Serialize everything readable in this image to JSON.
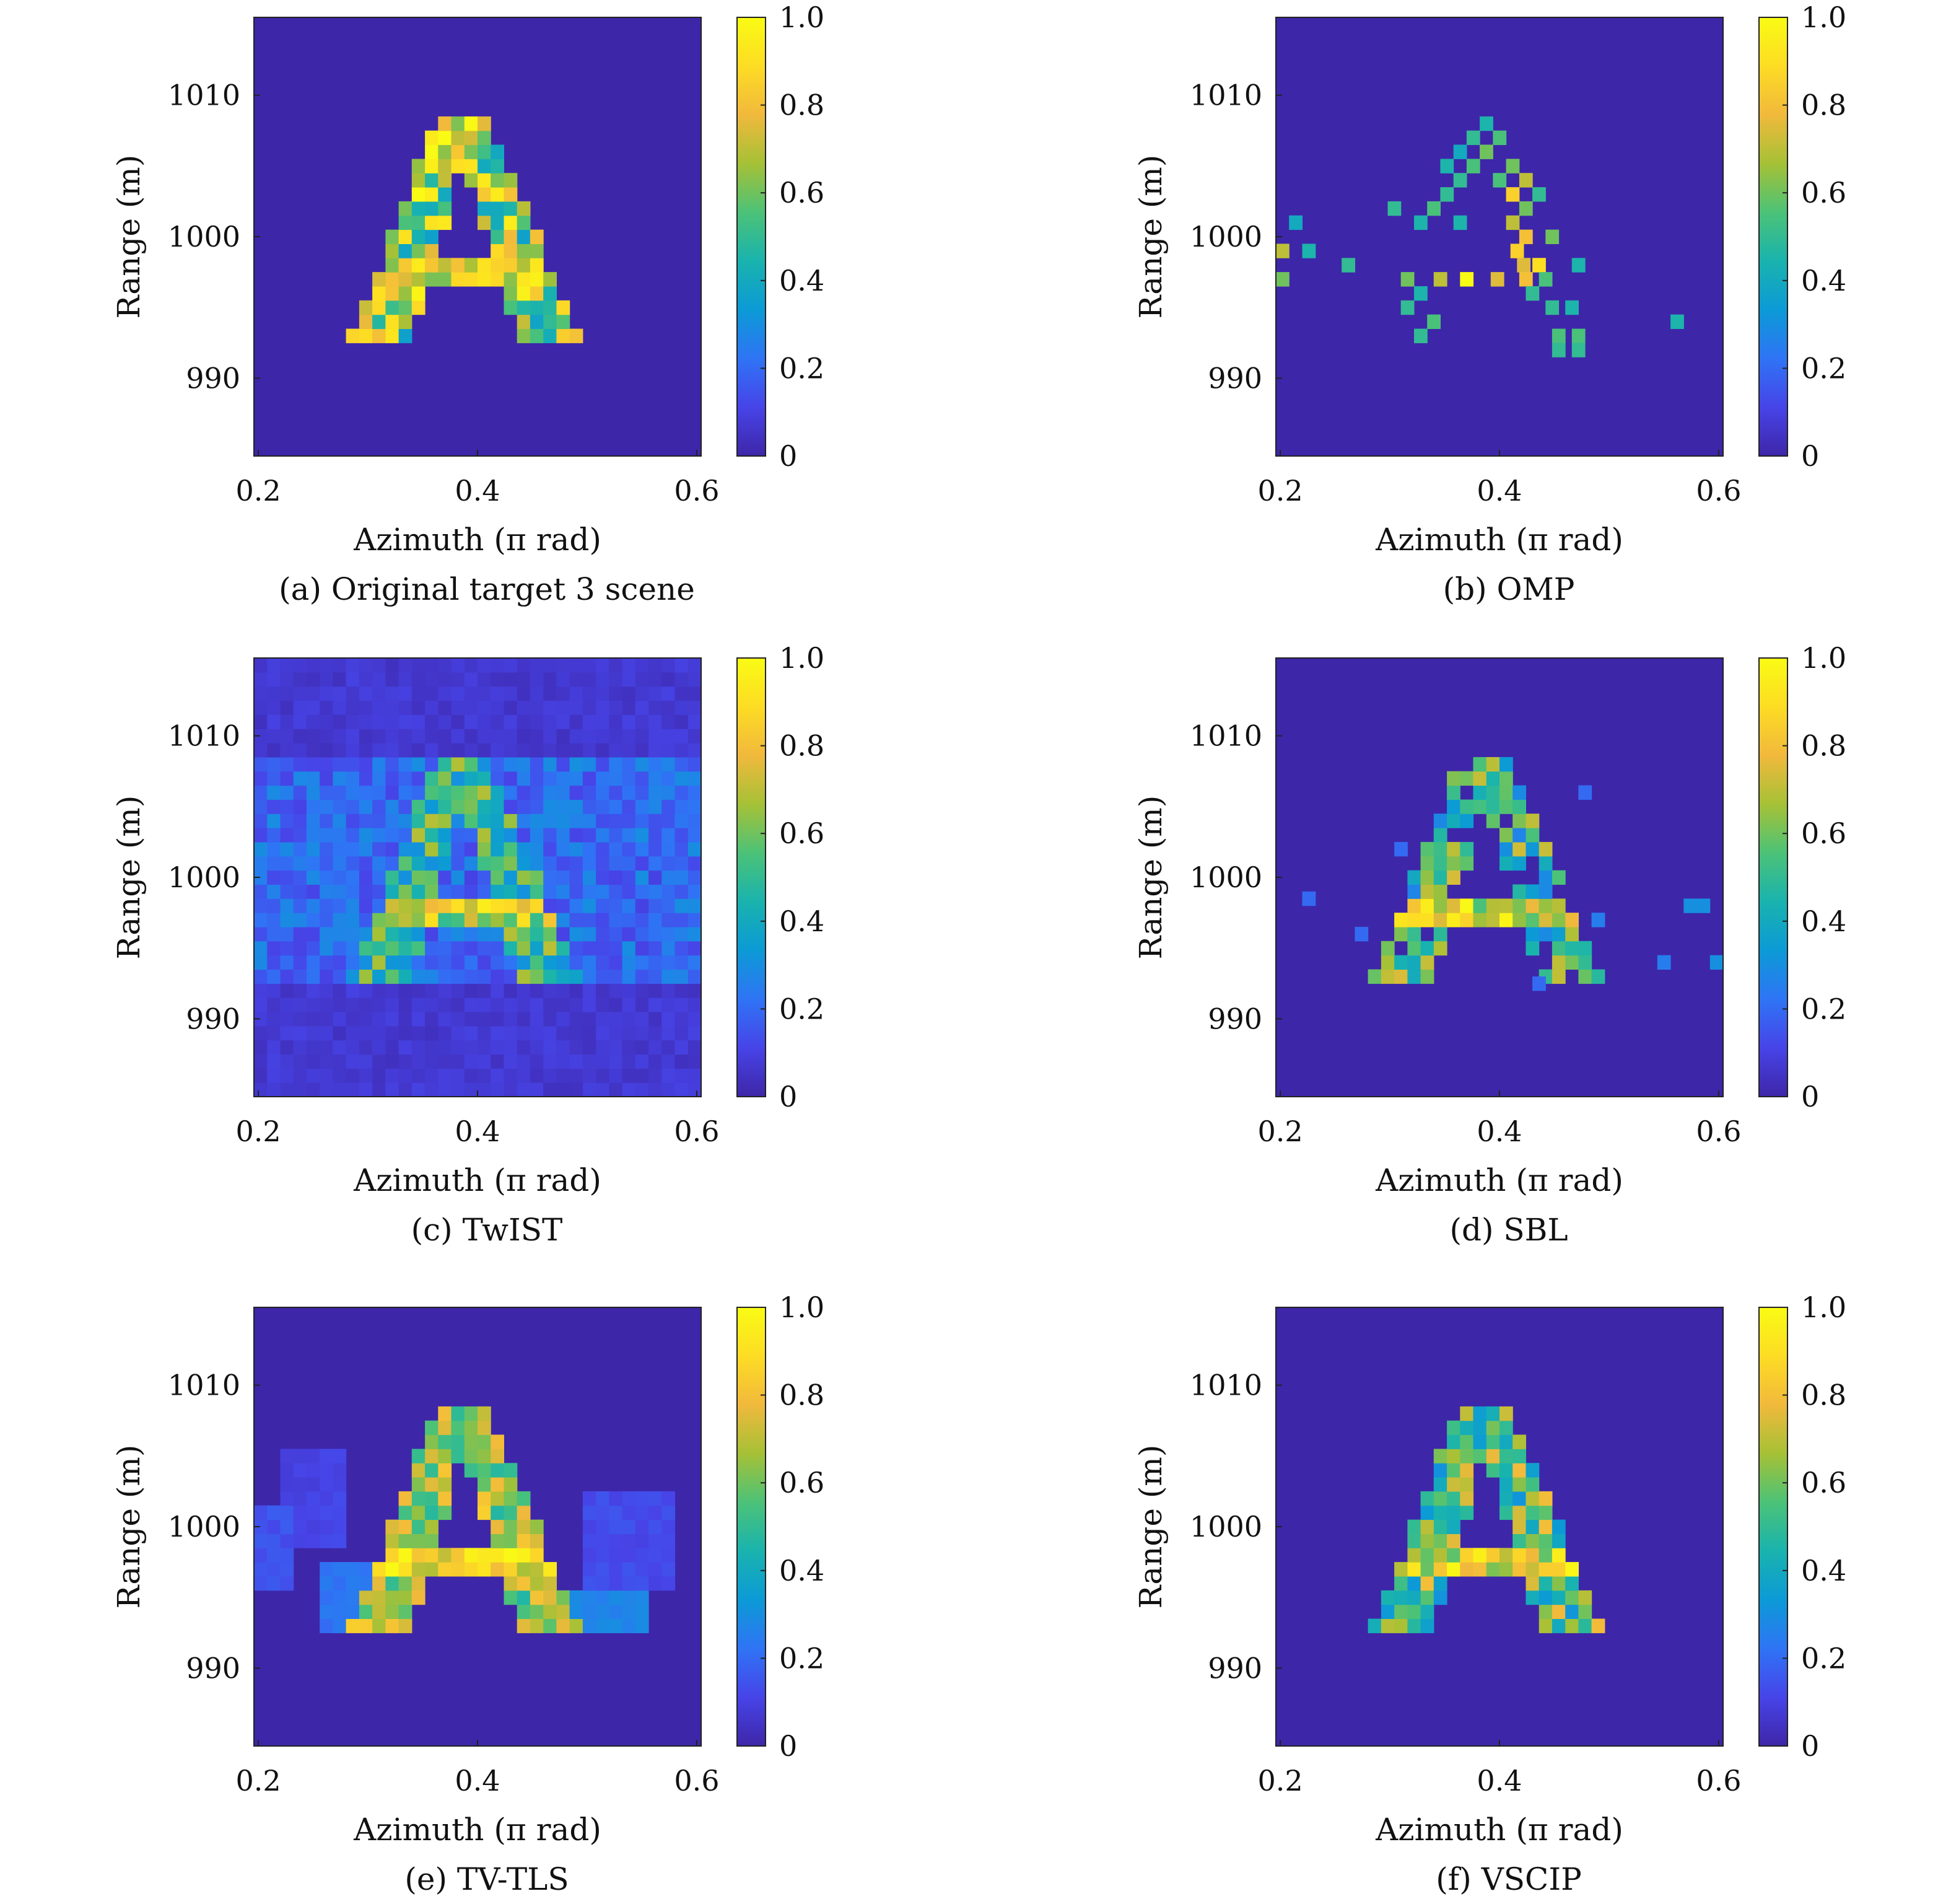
{
  "colormap": [
    "#3e26a8",
    "#4744e8",
    "#2f74f5",
    "#0c9ad6",
    "#19b3ae",
    "#4cc277",
    "#a6c136",
    "#f1b93c",
    "#fddc24",
    "#f9fb14"
  ],
  "cell_color": "#3e26a8",
  "panels": [
    {
      "caption": "(a) Original target 3 scene"
    },
    {
      "caption": "(b) OMP"
    },
    {
      "caption": "(c) TwIST"
    },
    {
      "caption": "(d) SBL"
    },
    {
      "caption": "(e) TV-TLS"
    },
    {
      "caption": "(f) VSCIP"
    }
  ],
  "chart_data": [
    {
      "type": "heatmap",
      "title": "",
      "caption": "(a) Original target 3 scene",
      "xlabel": "Azimuth (π rad)",
      "ylabel": "Range (m)",
      "xlim": [
        0.196,
        0.604
      ],
      "ylim": [
        984.5,
        1015.5
      ],
      "xticks": [
        0.2,
        0.4,
        0.6
      ],
      "xtick_labels": [
        "0.2",
        "0.4",
        "0.6"
      ],
      "yticks": [
        990,
        1000,
        1010
      ],
      "ytick_labels": [
        "990",
        "1000",
        "1010"
      ],
      "colorbar": {
        "min": 0,
        "max": 1,
        "ticks": [
          0,
          0.2,
          0.4,
          0.6,
          0.8,
          1.0
        ],
        "tick_labels": [
          "0",
          "0.2",
          "0.4",
          "0.6",
          "0.8",
          "1.0"
        ]
      },
      "background": 0.0,
      "noise": 0.0,
      "shape": "letter-A",
      "ranges": [
        [
          993.0,
          1008.0
        ]
      ],
      "letter_intensity": [
        0.35,
        1.0
      ],
      "crossbar_intensity": [
        0.6,
        1.0
      ]
    },
    {
      "type": "heatmap",
      "title": "",
      "caption": "(b) OMP",
      "xlabel": "Azimuth (π rad)",
      "ylabel": "Range (m)",
      "xlim": [
        0.196,
        0.604
      ],
      "ylim": [
        984.5,
        1015.5
      ],
      "xticks": [
        0.2,
        0.4,
        0.6
      ],
      "xtick_labels": [
        "0.2",
        "0.4",
        "0.6"
      ],
      "yticks": [
        990,
        1000,
        1010
      ],
      "ytick_labels": [
        "990",
        "1000",
        "1010"
      ],
      "colorbar": {
        "min": 0,
        "max": 1,
        "ticks": [
          0,
          0.2,
          0.4,
          0.6,
          0.8,
          1.0
        ],
        "tick_labels": [
          "0",
          "0.2",
          "0.4",
          "0.6",
          "0.8",
          "1.0"
        ]
      },
      "background": 0.0,
      "noise": 0.0,
      "shape": "sparse",
      "points": [
        [
          0.388,
          1008.0,
          0.45
        ],
        [
          0.376,
          1007.0,
          0.5
        ],
        [
          0.4,
          1007.0,
          0.55
        ],
        [
          0.364,
          1006.0,
          0.4
        ],
        [
          0.388,
          1006.0,
          0.6
        ],
        [
          0.352,
          1005.0,
          0.45
        ],
        [
          0.376,
          1005.0,
          0.55
        ],
        [
          0.412,
          1005.0,
          0.6
        ],
        [
          0.364,
          1004.0,
          0.5
        ],
        [
          0.4,
          1004.0,
          0.55
        ],
        [
          0.424,
          1004.0,
          0.7
        ],
        [
          0.352,
          1003.0,
          0.5
        ],
        [
          0.412,
          1003.0,
          0.85
        ],
        [
          0.436,
          1003.0,
          0.5
        ],
        [
          0.304,
          1002.0,
          0.5
        ],
        [
          0.34,
          1002.0,
          0.55
        ],
        [
          0.424,
          1002.0,
          0.6
        ],
        [
          0.328,
          1001.0,
          0.45
        ],
        [
          0.364,
          1001.0,
          0.45
        ],
        [
          0.412,
          1001.0,
          0.7
        ],
        [
          0.214,
          1001.0,
          0.4
        ],
        [
          0.424,
          1000.0,
          0.8
        ],
        [
          0.448,
          1000.0,
          0.6
        ],
        [
          0.202,
          999.0,
          0.7
        ],
        [
          0.226,
          999.0,
          0.45
        ],
        [
          0.416,
          999.0,
          0.85
        ],
        [
          0.436,
          998.0,
          0.9
        ],
        [
          0.422,
          998.0,
          0.75
        ],
        [
          0.262,
          998.0,
          0.5
        ],
        [
          0.472,
          998.0,
          0.45
        ],
        [
          0.202,
          997.0,
          0.6
        ],
        [
          0.316,
          997.0,
          0.6
        ],
        [
          0.346,
          997.0,
          0.7
        ],
        [
          0.37,
          997.0,
          1.0
        ],
        [
          0.398,
          997.0,
          0.75
        ],
        [
          0.424,
          997.0,
          0.8
        ],
        [
          0.442,
          997.0,
          0.55
        ],
        [
          0.328,
          996.0,
          0.45
        ],
        [
          0.43,
          996.0,
          0.5
        ],
        [
          0.316,
          995.0,
          0.5
        ],
        [
          0.448,
          995.0,
          0.5
        ],
        [
          0.466,
          995.0,
          0.45
        ],
        [
          0.34,
          994.0,
          0.55
        ],
        [
          0.562,
          994.0,
          0.45
        ],
        [
          0.328,
          993.0,
          0.5
        ],
        [
          0.454,
          993.0,
          0.55
        ],
        [
          0.472,
          993.0,
          0.55
        ],
        [
          0.454,
          992.0,
          0.5
        ],
        [
          0.472,
          992.0,
          0.5
        ]
      ]
    },
    {
      "type": "heatmap",
      "title": "",
      "caption": "(c) TwIST",
      "xlabel": "Azimuth (π rad)",
      "ylabel": "Range (m)",
      "xlim": [
        0.196,
        0.604
      ],
      "ylim": [
        984.5,
        1015.5
      ],
      "xticks": [
        0.2,
        0.4,
        0.6
      ],
      "xtick_labels": [
        "0.2",
        "0.4",
        "0.6"
      ],
      "yticks": [
        990,
        1000,
        1010
      ],
      "ytick_labels": [
        "990",
        "1000",
        "1010"
      ],
      "colorbar": {
        "min": 0,
        "max": 1,
        "ticks": [
          0,
          0.2,
          0.4,
          0.6,
          0.8,
          1.0
        ],
        "tick_labels": [
          "0",
          "0.2",
          "0.4",
          "0.6",
          "0.8",
          "1.0"
        ]
      },
      "background": 0.04,
      "noise": 0.06,
      "shape": "letter-A",
      "ranges": [
        [
          993.0,
          1008.0
        ]
      ],
      "band": [
        992.5,
        1008.5
      ],
      "band_intensity": [
        0.1,
        0.3
      ],
      "letter_intensity": [
        0.3,
        0.7
      ],
      "crossbar_intensity": [
        0.5,
        0.95
      ]
    },
    {
      "type": "heatmap",
      "title": "",
      "caption": "(d) SBL",
      "xlabel": "Azimuth (π rad)",
      "ylabel": "Range (m)",
      "xlim": [
        0.196,
        0.604
      ],
      "ylim": [
        984.5,
        1015.5
      ],
      "xticks": [
        0.2,
        0.4,
        0.6
      ],
      "xtick_labels": [
        "0.2",
        "0.4",
        "0.6"
      ],
      "yticks": [
        990,
        1000,
        1010
      ],
      "ytick_labels": [
        "990",
        "1000",
        "1010"
      ],
      "colorbar": {
        "min": 0,
        "max": 1,
        "ticks": [
          0,
          0.2,
          0.4,
          0.6,
          0.8,
          1.0
        ],
        "tick_labels": [
          "0",
          "0.2",
          "0.4",
          "0.6",
          "0.8",
          "1.0"
        ]
      },
      "background": 0.0,
      "noise": 0.0,
      "shape": "letter-A",
      "ranges": [
        [
          993.0,
          1008.0
        ]
      ],
      "letter_intensity": [
        0.25,
        0.75
      ],
      "crossbar_intensity": [
        0.55,
        1.0
      ],
      "dropout": 0.15,
      "points": [
        [
          0.226,
          998.5,
          0.2
        ],
        [
          0.274,
          996.0,
          0.2
        ],
        [
          0.31,
          1002.0,
          0.2
        ],
        [
          0.436,
          992.5,
          0.2
        ],
        [
          0.478,
          1006.0,
          0.2
        ],
        [
          0.49,
          997.0,
          0.25
        ],
        [
          0.55,
          994.0,
          0.25
        ],
        [
          0.574,
          998.0,
          0.3
        ],
        [
          0.586,
          998.0,
          0.3
        ],
        [
          0.598,
          994.0,
          0.3
        ]
      ]
    },
    {
      "type": "heatmap",
      "title": "",
      "caption": "(e) TV-TLS",
      "xlabel": "Azimuth (π rad)",
      "ylabel": "Range (m)",
      "xlim": [
        0.196,
        0.604
      ],
      "ylim": [
        984.5,
        1015.5
      ],
      "xticks": [
        0.2,
        0.4,
        0.6
      ],
      "xtick_labels": [
        "0.2",
        "0.4",
        "0.6"
      ],
      "yticks": [
        990,
        1000,
        1010
      ],
      "ytick_labels": [
        "990",
        "1000",
        "1010"
      ],
      "colorbar": {
        "min": 0,
        "max": 1,
        "ticks": [
          0,
          0.2,
          0.4,
          0.6,
          0.8,
          1.0
        ],
        "tick_labels": [
          "0",
          "0.2",
          "0.4",
          "0.6",
          "0.8",
          "1.0"
        ]
      },
      "background": 0.0,
      "noise": 0.0,
      "shape": "letter-A",
      "ranges": [
        [
          993.0,
          1008.0
        ]
      ],
      "letter_intensity": [
        0.45,
        0.85
      ],
      "crossbar_intensity": [
        0.65,
        1.0
      ],
      "blobs": [
        [
          0.26,
          0.3,
          993.0,
          997.0,
          0.2
        ],
        [
          0.22,
          0.28,
          999.0,
          1005.0,
          0.08
        ],
        [
          0.46,
          0.55,
          992.5,
          995.0,
          0.25
        ],
        [
          0.5,
          0.58,
          996.0,
          1002.0,
          0.1
        ],
        [
          0.2,
          0.23,
          996.0,
          1001.0,
          0.12
        ]
      ]
    },
    {
      "type": "heatmap",
      "title": "",
      "caption": "(f) VSCIP",
      "xlabel": "Azimuth (π rad)",
      "ylabel": "Range (m)",
      "xlim": [
        0.196,
        0.604
      ],
      "ylim": [
        984.5,
        1015.5
      ],
      "xticks": [
        0.2,
        0.4,
        0.6
      ],
      "xtick_labels": [
        "0.2",
        "0.4",
        "0.6"
      ],
      "yticks": [
        990,
        1000,
        1010
      ],
      "ytick_labels": [
        "990",
        "1000",
        "1010"
      ],
      "colorbar": {
        "min": 0,
        "max": 1,
        "ticks": [
          0,
          0.2,
          0.4,
          0.6,
          0.8,
          1.0
        ],
        "tick_labels": [
          "0",
          "0.2",
          "0.4",
          "0.6",
          "0.8",
          "1.0"
        ]
      },
      "background": 0.0,
      "noise": 0.0,
      "shape": "letter-A",
      "ranges": [
        [
          993.0,
          1008.0
        ]
      ],
      "letter_intensity": [
        0.3,
        0.8
      ],
      "crossbar_intensity": [
        0.55,
        1.0
      ]
    }
  ]
}
